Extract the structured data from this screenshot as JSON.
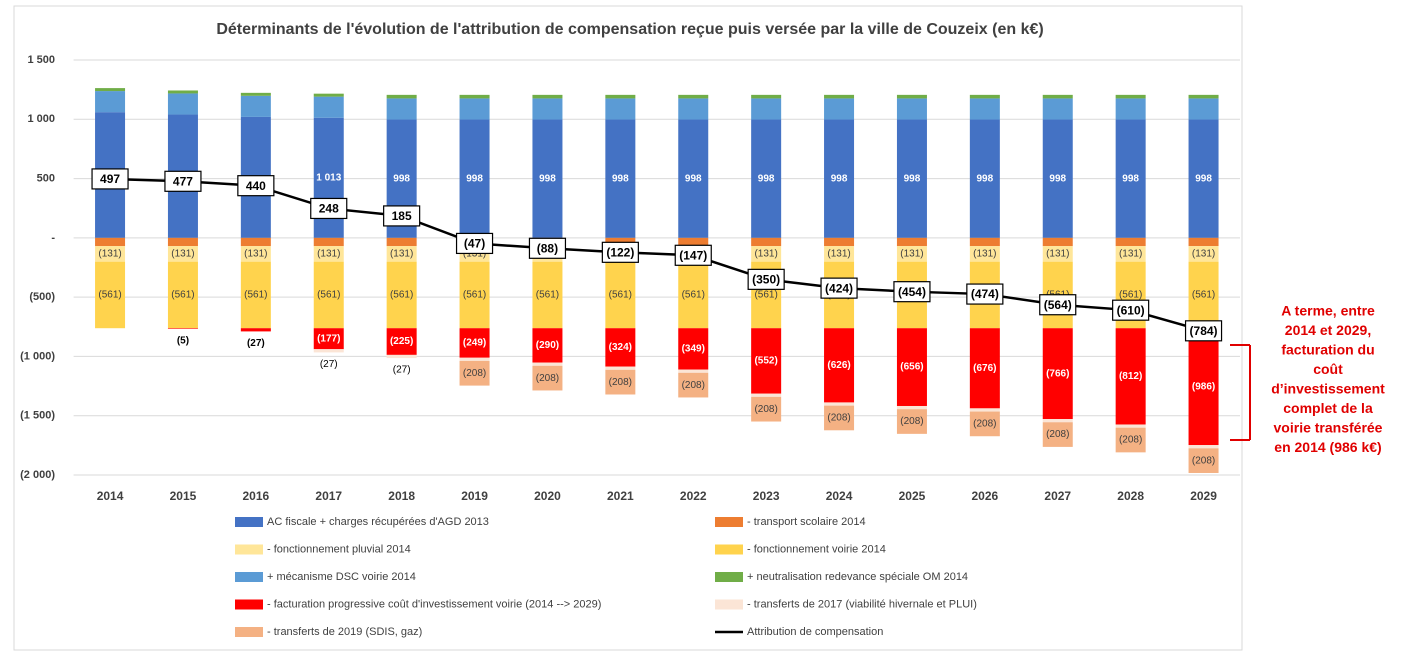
{
  "chart_data": {
    "type": "bar",
    "title": "Déterminants de l'évolution de l'attribution de compensation reçue puis versée par la ville de Couzeix (en k€)",
    "categories": [
      "2014",
      "2015",
      "2016",
      "2017",
      "2018",
      "2019",
      "2020",
      "2021",
      "2022",
      "2023",
      "2024",
      "2025",
      "2026",
      "2027",
      "2028",
      "2029"
    ],
    "ylim": [
      -2000,
      1500
    ],
    "yticks": [
      {
        "value": 1500,
        "label": "1 500"
      },
      {
        "value": 1000,
        "label": "1 000"
      },
      500,
      {
        "value": 0,
        "label": "-"
      },
      {
        "value": -500,
        "label": "(500)"
      },
      {
        "value": -1000,
        "label": "(1 000)"
      },
      {
        "value": -1500,
        "label": "(1 500)"
      },
      {
        "value": -2000,
        "label": "(2 000)"
      }
    ],
    "grid": true,
    "series": [
      {
        "name": "AC fiscale + charges récupérées d'AGD 2013",
        "color": "#4472c4",
        "values": [
          1060,
          1040,
          1020,
          1013,
          998,
          998,
          998,
          998,
          998,
          998,
          998,
          998,
          998,
          998,
          998,
          998
        ],
        "value_labels": [
          null,
          null,
          null,
          "1 013",
          "998",
          "998",
          "998",
          "998",
          "998",
          "998",
          "998",
          "998",
          "998",
          "998",
          "998",
          "998"
        ]
      },
      {
        "name": "- transport scolaire 2014",
        "color": "#ed7d31",
        "values": [
          -70,
          -70,
          -70,
          -70,
          -70,
          -70,
          -70,
          -70,
          -70,
          -70,
          -70,
          -70,
          -70,
          -70,
          -70,
          -70
        ]
      },
      {
        "name": "- fonctionnement pluvial 2014",
        "color": "#ffe699",
        "values": [
          -131,
          -131,
          -131,
          -131,
          -131,
          -131,
          -131,
          -131,
          -131,
          -131,
          -131,
          -131,
          -131,
          -131,
          -131,
          -131
        ],
        "value_labels": [
          "(131)",
          "(131)",
          "(131)",
          "(131)",
          "(131)",
          "(131)",
          "(131)",
          "(131)",
          "(131)",
          "(131)",
          "(131)",
          "(131)",
          "(131)",
          "(131)",
          "(131)",
          "(131)"
        ]
      },
      {
        "name": "- fonctionnement voirie 2014",
        "color": "#ffd34d",
        "values": [
          -561,
          -561,
          -561,
          -561,
          -561,
          -561,
          -561,
          -561,
          -561,
          -561,
          -561,
          -561,
          -561,
          -561,
          -561,
          -561
        ],
        "value_labels": [
          "(561)",
          "(561)",
          "(561)",
          "(561)",
          "(561)",
          "(561)",
          "(561)",
          "(561)",
          "(561)",
          "(561)",
          "(561)",
          "(561)",
          "(561)",
          "(561)",
          "(561)",
          "(561)"
        ]
      },
      {
        "name": "+ mécanisme DSC voirie 2014",
        "color": "#5b9bd5",
        "values": [
          178,
          178,
          178,
          178,
          178,
          178,
          178,
          178,
          178,
          178,
          178,
          178,
          178,
          178,
          178,
          178
        ]
      },
      {
        "name": "+ neutralisation redevance spéciale OM 2014",
        "color": "#70ad47",
        "values": [
          25,
          25,
          25,
          25,
          30,
          30,
          30,
          30,
          30,
          30,
          30,
          30,
          30,
          30,
          30,
          30
        ]
      },
      {
        "name": "- facturation progressive coût d'investissement voirie (2014 --> 2029)",
        "color": "#ff0000",
        "values": [
          null,
          -5,
          -27,
          -177,
          -225,
          -249,
          -290,
          -324,
          -349,
          -552,
          -626,
          -656,
          -676,
          -766,
          -812,
          -986
        ],
        "value_labels": [
          null,
          "(5)",
          "(27)",
          "(177)",
          "(225)",
          "(249)",
          "(290)",
          "(324)",
          "(349)",
          "(552)",
          "(626)",
          "(656)",
          "(676)",
          "(766)",
          "(812)",
          "(986)"
        ]
      },
      {
        "name": "- transferts de 2017 (viabilité hivernale et PLUI)",
        "color": "#fbe5d6",
        "values": [
          null,
          null,
          null,
          -27,
          -27,
          -27,
          -27,
          -27,
          -27,
          -27,
          -27,
          -27,
          -27,
          -27,
          -27,
          -27
        ],
        "value_labels": [
          null,
          null,
          null,
          "(27)",
          "(27)",
          "(27)",
          "(27)",
          "(27)",
          "(27)",
          "(27)",
          "(27)",
          "(27)",
          "(27)",
          "(27)",
          "(27)",
          "(27)"
        ]
      },
      {
        "name": "- transferts de 2019 (SDIS, gaz)",
        "color": "#f4b183",
        "values": [
          null,
          null,
          null,
          null,
          null,
          -208,
          -208,
          -208,
          -208,
          -208,
          -208,
          -208,
          -208,
          -208,
          -208,
          -208
        ],
        "value_labels": [
          null,
          null,
          null,
          null,
          null,
          "(208)",
          "(208)",
          "(208)",
          "(208)",
          "(208)",
          "(208)",
          "(208)",
          "(208)",
          "(208)",
          "(208)",
          "(208)"
        ]
      },
      {
        "name": "Attribution de compensation",
        "type": "line",
        "color": "#000000",
        "values": [
          497,
          477,
          440,
          248,
          185,
          -47,
          -88,
          -122,
          -147,
          -350,
          -424,
          -454,
          -474,
          -564,
          -610,
          -784
        ],
        "value_labels": [
          "497",
          "477",
          "440",
          "248",
          "185",
          "(47)",
          "(88)",
          "(122)",
          "(147)",
          "(350)",
          "(424)",
          "(454)",
          "(474)",
          "(564)",
          "(610)",
          "(784)"
        ]
      }
    ],
    "annotation": [
      "A terme, entre",
      "2014 et 2029,",
      "facturation du",
      "coût",
      "d’investissement",
      "complet de la",
      "voirie transférée",
      "en 2014 (986 k€)"
    ]
  }
}
